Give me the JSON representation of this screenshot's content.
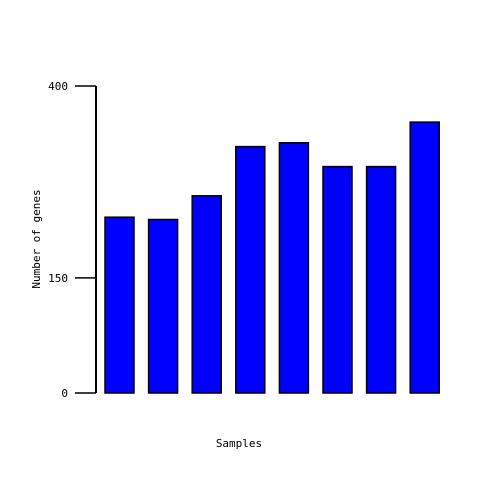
{
  "chart_data": {
    "type": "bar",
    "xlabel": "Samples",
    "ylabel": "Number of genes",
    "ylim": [
      0,
      400
    ],
    "yticks": [
      0,
      150,
      400
    ],
    "categories": [
      "",
      "",
      "",
      "",
      "",
      "",
      "",
      ""
    ],
    "values": [
      229,
      226,
      257,
      321,
      326,
      295,
      295,
      353
    ],
    "bar_color": "#0000ff",
    "bar_outline": "#000000"
  }
}
